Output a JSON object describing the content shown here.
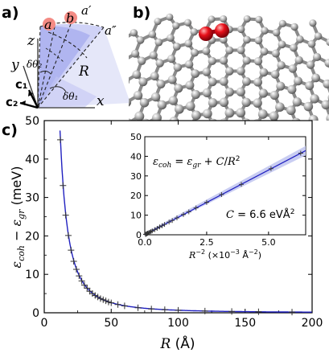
{
  "panel_labels": {
    "a": "a)",
    "b": "b)",
    "c": "c)"
  },
  "panel_a": {
    "labels": {
      "a": "a",
      "b": "b",
      "a_prime": "a′",
      "a_dprime": "a″",
      "z": "z",
      "y": "y",
      "x": "x",
      "R": "R",
      "dtheta1": "δθ₁",
      "dtheta2": "δθ₂",
      "c1": "c₁",
      "c2": "c₂"
    },
    "colors": {
      "wedge": "#b8bdf2",
      "wedge_dark": "#8f96e6",
      "atom": "#f48b84"
    }
  },
  "panel_b": {
    "colors": {
      "carbon": "#b4b4b4",
      "dimer": "#e8101a"
    }
  },
  "chart_data": [
    {
      "type": "line",
      "ylabel": "εcoh − εgr (meV)",
      "xlabel": "R (Å)",
      "xlim": [
        0,
        200
      ],
      "ylim": [
        0,
        50
      ],
      "xticks": [
        "0",
        "50",
        "100",
        "150",
        "200"
      ],
      "yticks": [
        "0",
        "10",
        "20",
        "30",
        "40",
        "50"
      ],
      "series": [
        {
          "x": [
            12,
            14,
            16,
            18,
            20,
            22,
            24,
            26,
            28,
            30,
            32,
            34,
            36,
            38,
            40,
            42,
            44,
            46,
            48,
            50,
            55,
            60,
            70,
            80,
            90,
            100,
            120,
            140,
            160,
            185
          ],
          "y": [
            45,
            33.1,
            25.4,
            20.1,
            16.3,
            13.4,
            11.3,
            9.6,
            8.3,
            7.2,
            6.4,
            5.6,
            5.0,
            4.5,
            4.1,
            3.7,
            3.4,
            3.1,
            2.8,
            2.6,
            2.15,
            1.8,
            1.3,
            1.0,
            0.8,
            0.65,
            0.45,
            0.33,
            0.25,
            0.19
          ]
        }
      ],
      "line_color": "#2020c0",
      "grid": false
    },
    {
      "type": "line",
      "inset": true,
      "xlabel": "R⁻² (×10⁻³ Å⁻²)",
      "xlim": [
        0,
        6.5
      ],
      "ylim": [
        0,
        50
      ],
      "xticks": [
        "0.0",
        "2.5",
        "5.0"
      ],
      "yticks": [
        "0",
        "10",
        "20",
        "30",
        "40",
        "50"
      ],
      "equation": "εcoh = εgr + C/R²",
      "constant": "C = 6.6 eVÅ²",
      "series": [
        {
          "x": [
            0.03,
            0.05,
            0.08,
            0.1,
            0.12,
            0.16,
            0.2,
            0.25,
            0.3,
            0.4,
            0.5,
            0.6,
            0.7,
            0.8,
            0.98,
            1.11,
            1.3,
            1.56,
            1.78,
            2.07,
            2.5,
            3.1,
            3.9,
            5.1,
            6.3
          ],
          "y": [
            0.2,
            0.33,
            0.5,
            0.65,
            0.8,
            1.05,
            1.3,
            1.65,
            2.0,
            2.6,
            3.3,
            4.0,
            4.6,
            5.3,
            6.5,
            7.3,
            8.6,
            10.3,
            11.7,
            13.7,
            16.5,
            20.5,
            25.7,
            33.7,
            41.6
          ]
        }
      ],
      "line_color": "#2020c0",
      "band_color": "#c0c4f0",
      "grid": false
    }
  ]
}
